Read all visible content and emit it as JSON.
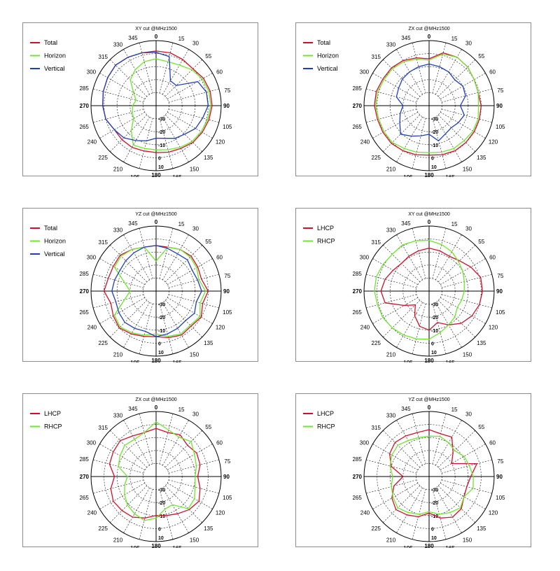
{
  "colors": {
    "Total": "#d0102a",
    "Horizon": "#6ee62c",
    "Vertical": "#1f3fb8",
    "LHCP": "#d0102a",
    "RHCP": "#6ee62c"
  },
  "angle_labels": {
    "top": "0",
    "bottom": "180",
    "left": "270",
    "right": "90",
    "small": [
      "15",
      "30",
      "55",
      "60",
      "75",
      "105",
      "120",
      "135",
      "150",
      "165",
      "195",
      "210",
      "225",
      "240",
      "265",
      "285",
      "300",
      "315",
      "330",
      "345"
    ]
  },
  "chart_data": [
    {
      "type": "polar",
      "title": "XY cut @MHz1500",
      "radial_labels": [
        "-30",
        "-20",
        "-10",
        "0",
        "10"
      ],
      "radial_range": [
        -40,
        10
      ],
      "angles_deg": [
        0,
        15,
        30,
        45,
        60,
        75,
        90,
        105,
        120,
        135,
        150,
        165,
        180,
        195,
        210,
        225,
        240,
        255,
        270,
        285,
        300,
        315,
        330,
        345
      ],
      "series": [
        {
          "name": "Total",
          "values": [
            2,
            2,
            1,
            0,
            2,
            3,
            3,
            2,
            1,
            0,
            -2,
            -3,
            -4,
            -4,
            -3,
            -3,
            -3,
            0,
            1,
            2,
            3,
            4,
            3,
            2
          ]
        },
        {
          "name": "Horizon",
          "values": [
            -4,
            -5,
            -4,
            -1,
            1,
            2,
            2,
            1,
            0,
            -1,
            -3,
            -5,
            -6,
            -6,
            -5,
            -13,
            -20,
            -21,
            -22,
            -24,
            -20,
            -12,
            -8,
            -5
          ]
        },
        {
          "name": "Vertical",
          "values": [
            1,
            -1,
            -18,
            -18,
            -3,
            0,
            0,
            -3,
            -5,
            -9,
            -11,
            -14,
            -15,
            -12,
            -9,
            -5,
            -3,
            0,
            1,
            2,
            3,
            4,
            3,
            2
          ]
        }
      ]
    },
    {
      "type": "polar",
      "title": "ZX cut @MHz1500",
      "radial_labels": [
        "-30",
        "-20",
        "-10",
        "0",
        "10"
      ],
      "radial_range": [
        -40,
        10
      ],
      "angles_deg": [
        0,
        15,
        30,
        45,
        60,
        75,
        90,
        105,
        120,
        135,
        150,
        165,
        180,
        195,
        210,
        225,
        240,
        255,
        270,
        285,
        300,
        315,
        330,
        345
      ],
      "series": [
        {
          "name": "Total",
          "values": [
            -4,
            2,
            3,
            2,
            0,
            -1,
            0,
            0,
            0,
            0,
            0,
            -1,
            -2,
            -1,
            0,
            1,
            1,
            1,
            2,
            2,
            1,
            1,
            0,
            -2
          ]
        },
        {
          "name": "Horizon",
          "values": [
            -5,
            1,
            3,
            2,
            0,
            -1,
            -2,
            -1,
            -1,
            -2,
            -2,
            -3,
            -4,
            -3,
            -2,
            0,
            0,
            0,
            1,
            1,
            0,
            0,
            -1,
            -3
          ]
        },
        {
          "name": "Vertical",
          "values": [
            -8,
            -9,
            -10,
            -12,
            -10,
            -11,
            -16,
            -12,
            -14,
            -16,
            -15,
            -12,
            -18,
            -16,
            -13,
            -9,
            -14,
            -17,
            -20,
            -14,
            -13,
            -11,
            -10,
            -9
          ]
        }
      ]
    },
    {
      "type": "polar",
      "title": "YZ cut @MHz1500",
      "radial_labels": [
        "-30",
        "-20",
        "-10",
        "0",
        "10"
      ],
      "radial_range": [
        -40,
        10
      ],
      "angles_deg": [
        0,
        15,
        30,
        45,
        60,
        75,
        90,
        105,
        120,
        135,
        150,
        165,
        180,
        195,
        210,
        225,
        240,
        255,
        270,
        285,
        300,
        315,
        330,
        345
      ],
      "series": [
        {
          "name": "Total",
          "values": [
            -5,
            -5,
            -3,
            -2,
            -3,
            -4,
            0,
            -3,
            0,
            -2,
            -1,
            -3,
            -5,
            -4,
            -2,
            0,
            -2,
            -4,
            0,
            -2,
            -2,
            -1,
            -3,
            -5
          ]
        },
        {
          "name": "Horizon",
          "values": [
            -17,
            -5,
            -3,
            -3,
            -4,
            -6,
            -2,
            -5,
            -1,
            -3,
            -2,
            -4,
            -7,
            -5,
            -3,
            -1,
            -3,
            -15,
            -20,
            -15,
            -3,
            -2,
            -3,
            -5
          ]
        },
        {
          "name": "Vertical",
          "values": [
            -5,
            -6,
            -7,
            -6,
            -8,
            -7,
            -5,
            -8,
            -6,
            -8,
            -7,
            -6,
            -5,
            -8,
            -7,
            -6,
            -7,
            -8,
            -6,
            -7,
            -8,
            -7,
            -6,
            -5
          ]
        }
      ]
    },
    {
      "type": "polar",
      "title": "XY cut @MHz1500",
      "radial_labels": [
        "-30",
        "-20",
        "-10",
        "0",
        "10"
      ],
      "radial_range": [
        -40,
        10
      ],
      "angles_deg": [
        0,
        15,
        30,
        45,
        60,
        75,
        90,
        105,
        120,
        135,
        150,
        165,
        180,
        195,
        210,
        225,
        240,
        255,
        270,
        285,
        300,
        315,
        330,
        345
      ],
      "series": [
        {
          "name": "LHCP",
          "values": [
            -7,
            -8,
            -9,
            -7,
            -3,
            1,
            1,
            0,
            -2,
            -5,
            -10,
            -15,
            -10,
            -12,
            -18,
            -25,
            -18,
            -5,
            -3,
            -5,
            -8,
            -10,
            -9,
            -8
          ]
        },
        {
          "name": "RHCP",
          "values": [
            -1,
            -3,
            -5,
            -8,
            -10,
            -12,
            -13,
            -14,
            -15,
            -12,
            -10,
            -7,
            -3,
            -2,
            -1,
            0,
            1,
            1,
            2,
            2,
            1,
            0,
            1,
            0
          ]
        }
      ]
    },
    {
      "type": "polar",
      "title": "ZX cut @MHz1500",
      "radial_labels": [
        "-30",
        "-20",
        "-10",
        "0",
        "10"
      ],
      "radial_range": [
        -40,
        10
      ],
      "angles_deg": [
        0,
        15,
        30,
        45,
        60,
        75,
        90,
        105,
        120,
        135,
        150,
        165,
        180,
        195,
        210,
        225,
        240,
        255,
        270,
        285,
        300,
        315,
        330,
        345
      ],
      "series": [
        {
          "name": "LHCP",
          "values": [
            -3,
            -5,
            -3,
            -6,
            -4,
            -5,
            -8,
            -5,
            -2,
            -4,
            -7,
            -9,
            -10,
            -7,
            -4,
            -3,
            -2,
            -4,
            -8,
            -3,
            -2,
            -1,
            -4,
            -5
          ]
        },
        {
          "name": "RHCP",
          "values": [
            2,
            -3,
            -5,
            -2,
            -6,
            -8,
            -10,
            -9,
            -6,
            -5,
            -15,
            -14,
            -8,
            -5,
            -7,
            -9,
            -12,
            -15,
            -18,
            -10,
            -8,
            -6,
            -7,
            -5
          ]
        }
      ]
    },
    {
      "type": "polar",
      "title": "YZ cut @MHz1500",
      "radial_labels": [
        "-30",
        "-20",
        "-10",
        "0",
        "10"
      ],
      "radial_range": [
        -40,
        10
      ],
      "angles_deg": [
        0,
        15,
        30,
        45,
        60,
        75,
        90,
        105,
        120,
        135,
        150,
        165,
        180,
        195,
        210,
        225,
        240,
        255,
        270,
        285,
        300,
        315,
        330,
        345
      ],
      "series": [
        {
          "name": "LHCP",
          "values": [
            -4,
            -6,
            -5,
            -14,
            -20,
            -2,
            -8,
            -10,
            -9,
            -5,
            -4,
            -7,
            -12,
            -8,
            -6,
            -4,
            -7,
            -12,
            -20,
            -10,
            -5,
            -3,
            -4,
            -5
          ]
        },
        {
          "name": "RHCP",
          "values": [
            -9,
            -8,
            -10,
            -12,
            -9,
            -8,
            -6,
            -5,
            -9,
            -6,
            -8,
            -10,
            -13,
            -10,
            -8,
            -6,
            -8,
            -10,
            -12,
            -9,
            -7,
            -6,
            -8,
            -9
          ]
        }
      ]
    }
  ]
}
